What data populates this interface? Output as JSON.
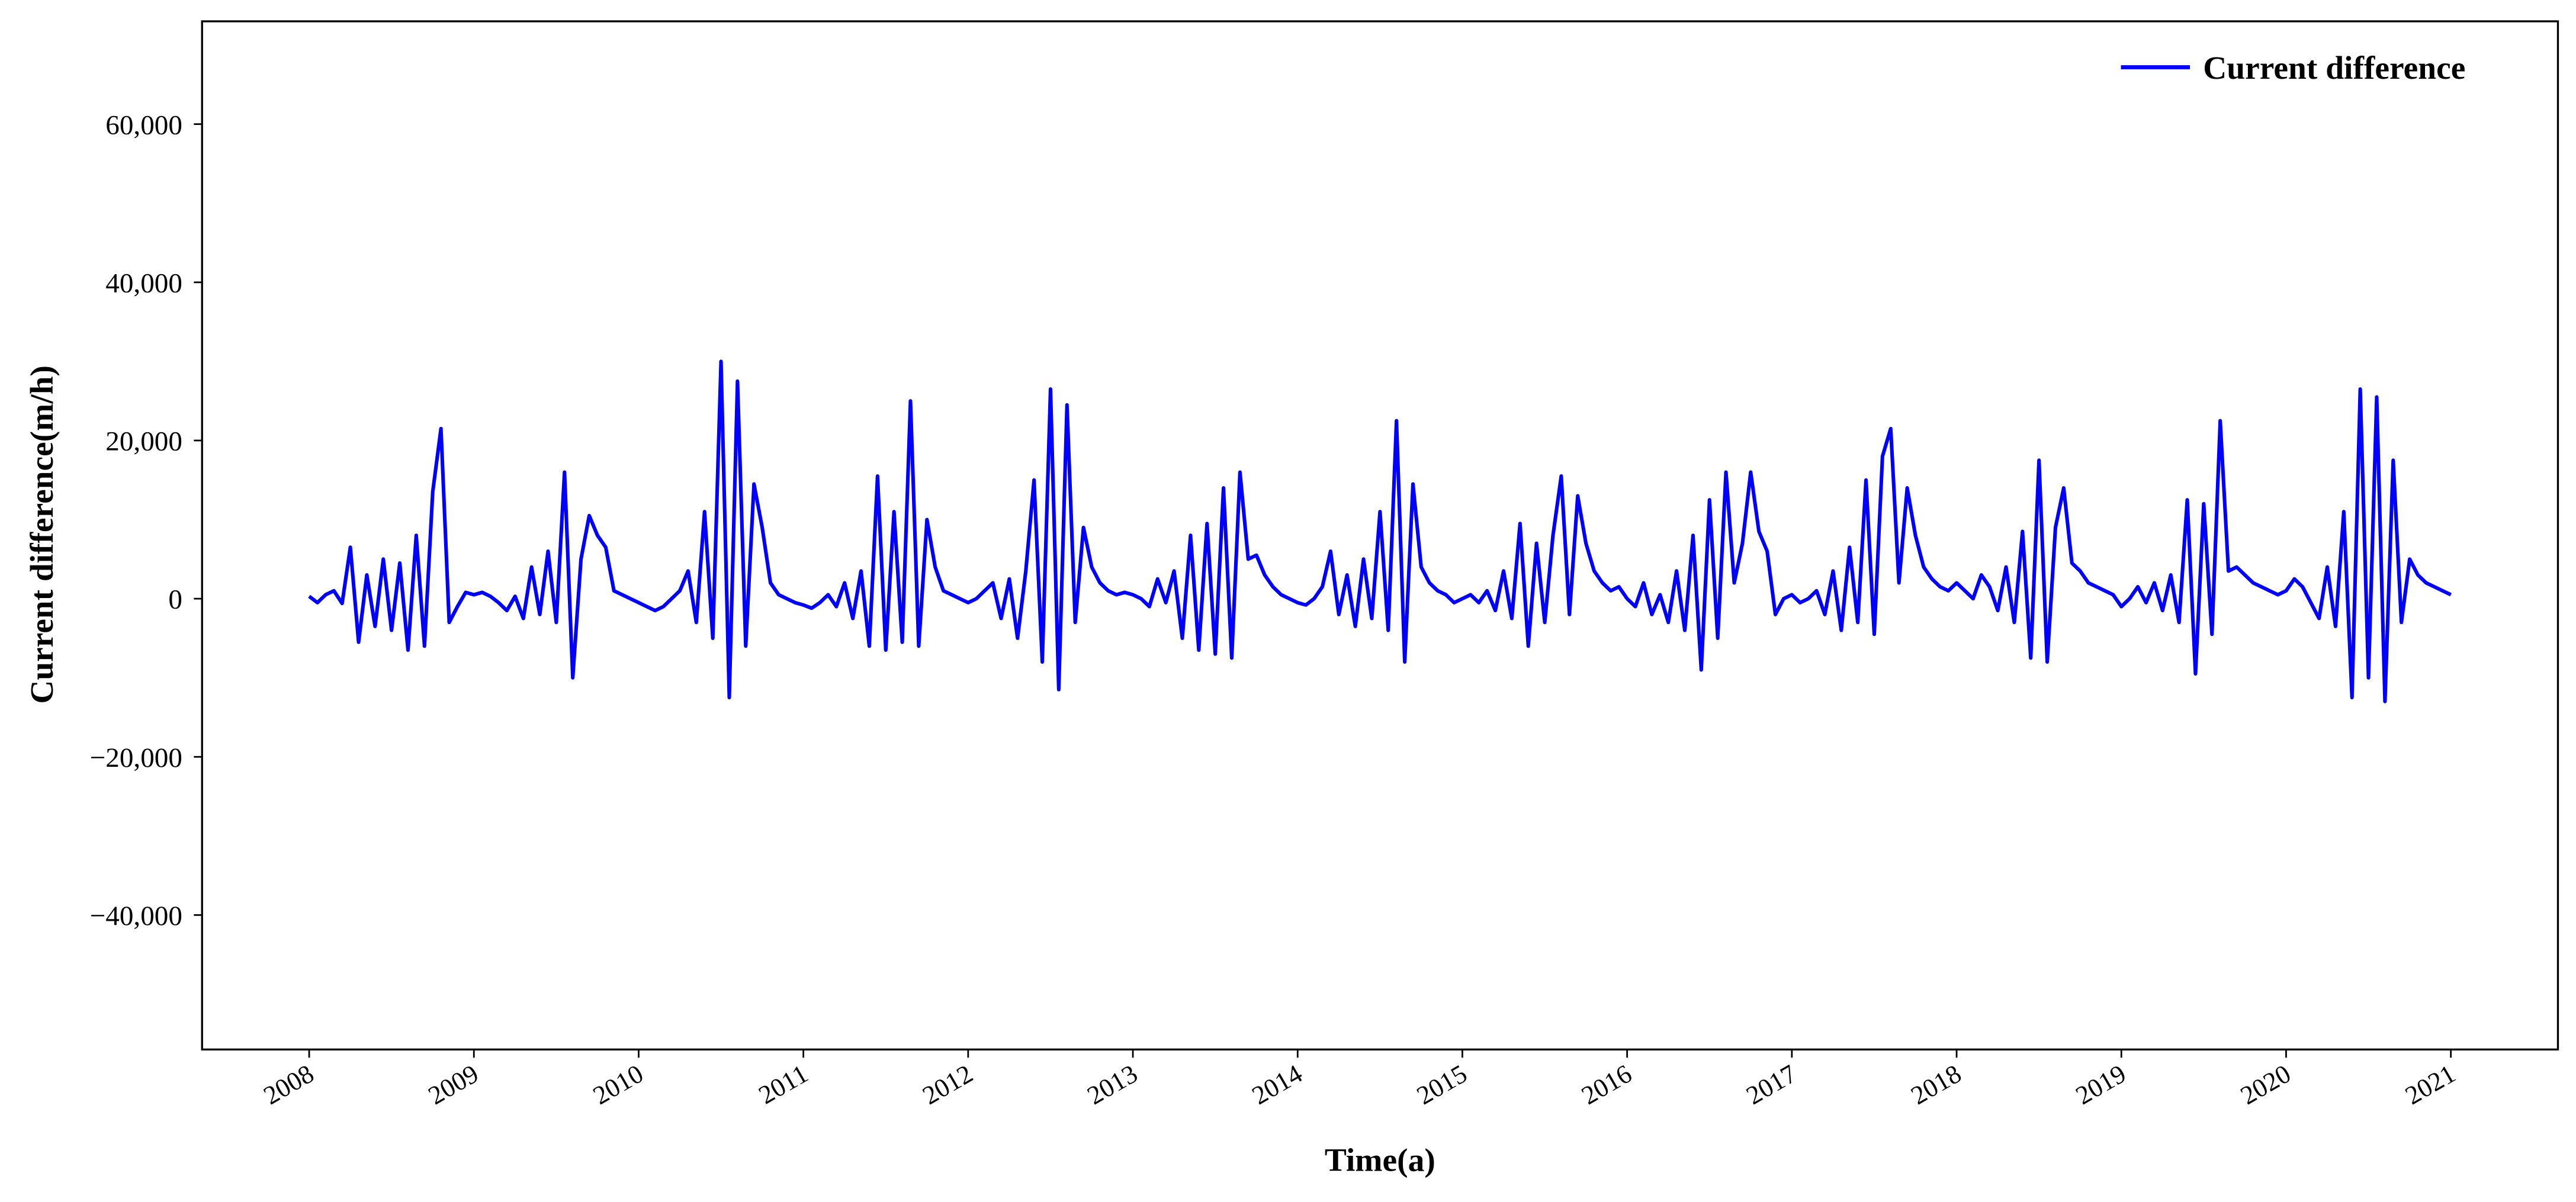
{
  "chart_data": {
    "type": "line",
    "x_label": "Time(a)",
    "y_label": "Current difference(m/h)",
    "xlim": [
      2007.35,
      2021.65
    ],
    "ylim": [
      -57000,
      73000
    ],
    "xticks": [
      2008,
      2009,
      2010,
      2011,
      2012,
      2013,
      2014,
      2015,
      2016,
      2017,
      2018,
      2019,
      2020,
      2021
    ],
    "yticks": [
      {
        "value": -40000,
        "label": "−40,000"
      },
      {
        "value": -20000,
        "label": "−20,000"
      },
      0,
      {
        "value": 20000,
        "label": "20,000"
      },
      {
        "value": 40000,
        "label": "40,000"
      },
      {
        "value": 60000,
        "label": "60,000"
      }
    ],
    "legend": "upper right",
    "grid": false,
    "x": [
      2008,
      2008.05,
      2008.1,
      2008.15,
      2008.2,
      2008.25,
      2008.3,
      2008.35,
      2008.4,
      2008.45,
      2008.5,
      2008.55,
      2008.6,
      2008.65,
      2008.7,
      2008.75,
      2008.8,
      2008.85,
      2008.9,
      2008.95,
      2009,
      2009.05,
      2009.1,
      2009.15,
      2009.2,
      2009.25,
      2009.3,
      2009.35,
      2009.4,
      2009.45,
      2009.5,
      2009.55,
      2009.6,
      2009.65,
      2009.7,
      2009.75,
      2009.8,
      2009.85,
      2009.9,
      2009.95,
      2010,
      2010.05,
      2010.1,
      2010.15,
      2010.2,
      2010.25,
      2010.3,
      2010.35,
      2010.4,
      2010.45,
      2010.5,
      2010.55,
      2010.6,
      2010.65,
      2010.7,
      2010.75,
      2010.8,
      2010.85,
      2010.9,
      2010.95,
      2011,
      2011.05,
      2011.1,
      2011.15,
      2011.2,
      2011.25,
      2011.3,
      2011.35,
      2011.4,
      2011.45,
      2011.5,
      2011.55,
      2011.6,
      2011.65,
      2011.7,
      2011.75,
      2011.8,
      2011.85,
      2011.9,
      2011.95,
      2012,
      2012.05,
      2012.1,
      2012.15,
      2012.2,
      2012.25,
      2012.3,
      2012.35,
      2012.4,
      2012.45,
      2012.5,
      2012.55,
      2012.6,
      2012.65,
      2012.7,
      2012.75,
      2012.8,
      2012.85,
      2012.9,
      2012.95,
      2013,
      2013.05,
      2013.1,
      2013.15,
      2013.2,
      2013.25,
      2013.3,
      2013.35,
      2013.4,
      2013.45,
      2013.5,
      2013.55,
      2013.6,
      2013.65,
      2013.7,
      2013.75,
      2013.8,
      2013.85,
      2013.9,
      2013.95,
      2014,
      2014.05,
      2014.1,
      2014.15,
      2014.2,
      2014.25,
      2014.3,
      2014.35,
      2014.4,
      2014.45,
      2014.5,
      2014.55,
      2014.6,
      2014.65,
      2014.7,
      2014.75,
      2014.8,
      2014.85,
      2014.9,
      2014.95,
      2015,
      2015.05,
      2015.1,
      2015.15,
      2015.2,
      2015.25,
      2015.3,
      2015.35,
      2015.4,
      2015.45,
      2015.5,
      2015.55,
      2015.6,
      2015.65,
      2015.7,
      2015.75,
      2015.8,
      2015.85,
      2015.9,
      2015.95,
      2016,
      2016.05,
      2016.1,
      2016.15,
      2016.2,
      2016.25,
      2016.3,
      2016.35,
      2016.4,
      2016.45,
      2016.5,
      2016.55,
      2016.6,
      2016.65,
      2016.7,
      2016.75,
      2016.8,
      2016.85,
      2016.9,
      2016.95,
      2017,
      2017.05,
      2017.1,
      2017.15,
      2017.2,
      2017.25,
      2017.3,
      2017.35,
      2017.4,
      2017.45,
      2017.5,
      2017.55,
      2017.6,
      2017.65,
      2017.7,
      2017.75,
      2017.8,
      2017.85,
      2017.9,
      2017.95,
      2018,
      2018.05,
      2018.1,
      2018.15,
      2018.2,
      2018.25,
      2018.3,
      2018.35,
      2018.4,
      2018.45,
      2018.5,
      2018.55,
      2018.6,
      2018.65,
      2018.7,
      2018.75,
      2018.8,
      2018.85,
      2018.9,
      2018.95,
      2019,
      2019.05,
      2019.1,
      2019.15,
      2019.2,
      2019.25,
      2019.3,
      2019.35,
      2019.4,
      2019.45,
      2019.5,
      2019.55,
      2019.6,
      2019.65,
      2019.7,
      2019.75,
      2019.8,
      2019.85,
      2019.9,
      2019.95,
      2020,
      2020.05,
      2020.1,
      2020.15,
      2020.2,
      2020.25,
      2020.3,
      2020.35,
      2020.4,
      2020.45,
      2020.5,
      2020.55,
      2020.6,
      2020.65,
      2020.7,
      2020.75,
      2020.8,
      2020.85,
      2020.9,
      2020.95,
      2021
    ],
    "series": [
      {
        "name": "Current difference",
        "color": "#0000ff",
        "values": [
          300,
          -500,
          500,
          1000,
          -600,
          6500,
          -5500,
          3000,
          -3500,
          5000,
          -4000,
          4500,
          -6500,
          8000,
          -6000,
          13500,
          21500,
          -3000,
          -1000,
          800,
          500,
          800,
          300,
          -500,
          -1500,
          300,
          -2500,
          4000,
          -2000,
          6000,
          -3000,
          16000,
          -10000,
          5000,
          10500,
          8000,
          6500,
          1000,
          500,
          0,
          -500,
          -1000,
          -1500,
          -1000,
          0,
          1000,
          3500,
          -3000,
          11000,
          -5000,
          30000,
          -12500,
          27500,
          -6000,
          14500,
          9000,
          2000,
          500,
          0,
          -500,
          -800,
          -1200,
          -500,
          500,
          -1000,
          2000,
          -2500,
          3500,
          -6000,
          15500,
          -6500,
          11000,
          -5500,
          25000,
          -6000,
          10000,
          4000,
          1000,
          500,
          0,
          -500,
          0,
          1000,
          2000,
          -2500,
          2500,
          -5000,
          3500,
          15000,
          -8000,
          26500,
          -11500,
          24500,
          -3000,
          9000,
          4000,
          2000,
          1000,
          500,
          800,
          500,
          0,
          -1000,
          2500,
          -500,
          3500,
          -5000,
          8000,
          -6500,
          9500,
          -7000,
          14000,
          -7500,
          16000,
          5000,
          5500,
          3000,
          1500,
          500,
          0,
          -500,
          -800,
          0,
          1500,
          6000,
          -2000,
          3000,
          -3500,
          5000,
          -2500,
          11000,
          -4000,
          22500,
          -8000,
          14500,
          4000,
          2000,
          1000,
          500,
          -500,
          0,
          500,
          -500,
          1000,
          -1500,
          3500,
          -2500,
          9500,
          -6000,
          7000,
          -3000,
          8000,
          15500,
          -2000,
          13000,
          7000,
          3500,
          2000,
          1000,
          1500,
          0,
          -1000,
          2000,
          -2000,
          500,
          -3000,
          3500,
          -4000,
          8000,
          -9000,
          12500,
          -5000,
          16000,
          2000,
          7000,
          16000,
          8500,
          6000,
          -2000,
          0,
          500,
          -500,
          0,
          1000,
          -2000,
          3500,
          -4000,
          6500,
          -3000,
          15000,
          -4500,
          18000,
          21500,
          2000,
          14000,
          8000,
          4000,
          2500,
          1500,
          1000,
          2000,
          1000,
          0,
          3000,
          1500,
          -1500,
          4000,
          -3000,
          8500,
          -7500,
          17500,
          -8000,
          9000,
          14000,
          4500,
          3500,
          2000,
          1500,
          1000,
          500,
          -1000,
          0,
          1500,
          -500,
          2000,
          -1500,
          3000,
          -3000,
          12500,
          -9500,
          12000,
          -4500,
          22500,
          3500,
          4000,
          3000,
          2000,
          1500,
          1000,
          500,
          1000,
          2500,
          1500,
          -500,
          -2500,
          4000,
          -3500,
          11000,
          -12500,
          26500,
          -10000,
          25500,
          -13000,
          17500,
          -3000,
          5000,
          3000,
          2000,
          1500,
          1000,
          500
        ]
      }
    ]
  }
}
